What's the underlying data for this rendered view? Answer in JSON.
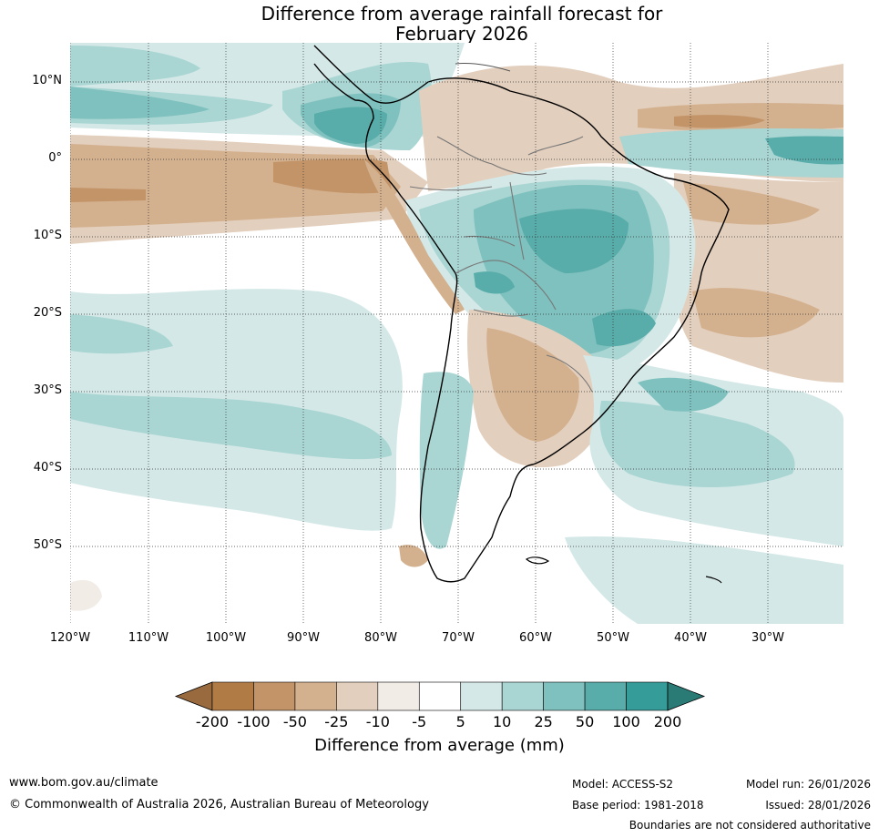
{
  "title_lines": [
    "Difference from average rainfall forecast for",
    "February 2026"
  ],
  "lat_labels": [
    "10°N",
    "0°",
    "10°S",
    "20°S",
    "30°S",
    "40°S",
    "50°S"
  ],
  "lon_labels": [
    "120°W",
    "110°W",
    "100°W",
    "90°W",
    "80°W",
    "70°W",
    "60°W",
    "50°W",
    "40°W",
    "30°W"
  ],
  "colorbar": {
    "ticks": [
      "-200",
      "-100",
      "-50",
      "-25",
      "-10",
      "-5",
      "5",
      "10",
      "25",
      "50",
      "100",
      "200"
    ],
    "colors": [
      "#9a6a3f",
      "#b07b45",
      "#c39468",
      "#d3b08e",
      "#e3cfbd",
      "#f1ece6",
      "#ffffff",
      "#d4e9e7",
      "#a9d5d3",
      "#7fc1be",
      "#58aca9",
      "#359c99",
      "#2a7a76"
    ],
    "label": "Difference from average (mm)"
  },
  "footer": {
    "url": "www.bom.gov.au/climate",
    "copyright": "© Commonwealth of Australia 2026, Australian Bureau of Meteorology",
    "model": "Model: ACCESS-S2",
    "base_period": "Base period: 1981-2018",
    "model_run": "Model run: 26/01/2026",
    "issued": "Issued: 28/01/2026",
    "disclaimer": "Boundaries are not considered authoritative"
  }
}
